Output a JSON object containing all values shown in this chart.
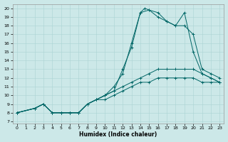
{
  "xlabel": "Humidex (Indice chaleur)",
  "bg_color": "#cce8e8",
  "line_color": "#006666",
  "grid_color": "#aad4d4",
  "xlim": [
    -0.5,
    23.5
  ],
  "ylim": [
    6.8,
    20.5
  ],
  "xticks": [
    0,
    1,
    2,
    3,
    4,
    5,
    6,
    7,
    8,
    9,
    10,
    11,
    12,
    13,
    14,
    15,
    16,
    17,
    18,
    19,
    20,
    21,
    22,
    23
  ],
  "yticks": [
    7,
    8,
    9,
    10,
    11,
    12,
    13,
    14,
    15,
    16,
    17,
    18,
    19,
    20
  ],
  "lines": [
    {
      "x": [
        0,
        2,
        3,
        4,
        5,
        6,
        7,
        8,
        9,
        10,
        11,
        12,
        13,
        14,
        14.5,
        15,
        16,
        17,
        18,
        19,
        20,
        21,
        22,
        23
      ],
      "y": [
        8,
        8.5,
        9,
        8,
        8,
        8,
        8,
        9,
        9.5,
        10,
        10.5,
        13,
        15.5,
        19.5,
        20,
        19.8,
        19.5,
        18.5,
        18,
        19.5,
        15,
        12.5,
        12,
        11.5
      ]
    },
    {
      "x": [
        0,
        2,
        3,
        4,
        5,
        6,
        7,
        8,
        9,
        10,
        11,
        12,
        13,
        14,
        15,
        16,
        17,
        18,
        19,
        20,
        21,
        22,
        23
      ],
      "y": [
        8,
        8.5,
        9,
        8,
        8,
        8,
        8,
        9,
        9.5,
        10,
        11,
        12.5,
        16,
        19.5,
        19.8,
        19,
        18.5,
        18,
        18,
        17,
        13,
        12.5,
        12
      ]
    },
    {
      "x": [
        0,
        2,
        3,
        4,
        5,
        6,
        7,
        8,
        9,
        10,
        11,
        12,
        13,
        14,
        15,
        16,
        17,
        18,
        19,
        20,
        21,
        22,
        23
      ],
      "y": [
        8,
        8.5,
        9,
        8,
        8,
        8,
        8,
        9,
        9.5,
        10,
        10.5,
        11,
        11.5,
        12,
        12.5,
        13,
        13,
        13,
        13,
        13,
        12.5,
        12,
        11.5
      ]
    },
    {
      "x": [
        0,
        2,
        3,
        4,
        5,
        6,
        7,
        8,
        9,
        10,
        11,
        12,
        13,
        14,
        15,
        16,
        17,
        18,
        19,
        20,
        21,
        22,
        23
      ],
      "y": [
        8,
        8.5,
        9,
        8,
        8,
        8,
        8,
        9,
        9.5,
        9.5,
        10,
        10.5,
        11,
        11.5,
        11.5,
        12,
        12,
        12,
        12,
        12,
        11.5,
        11.5,
        11.5
      ]
    }
  ]
}
